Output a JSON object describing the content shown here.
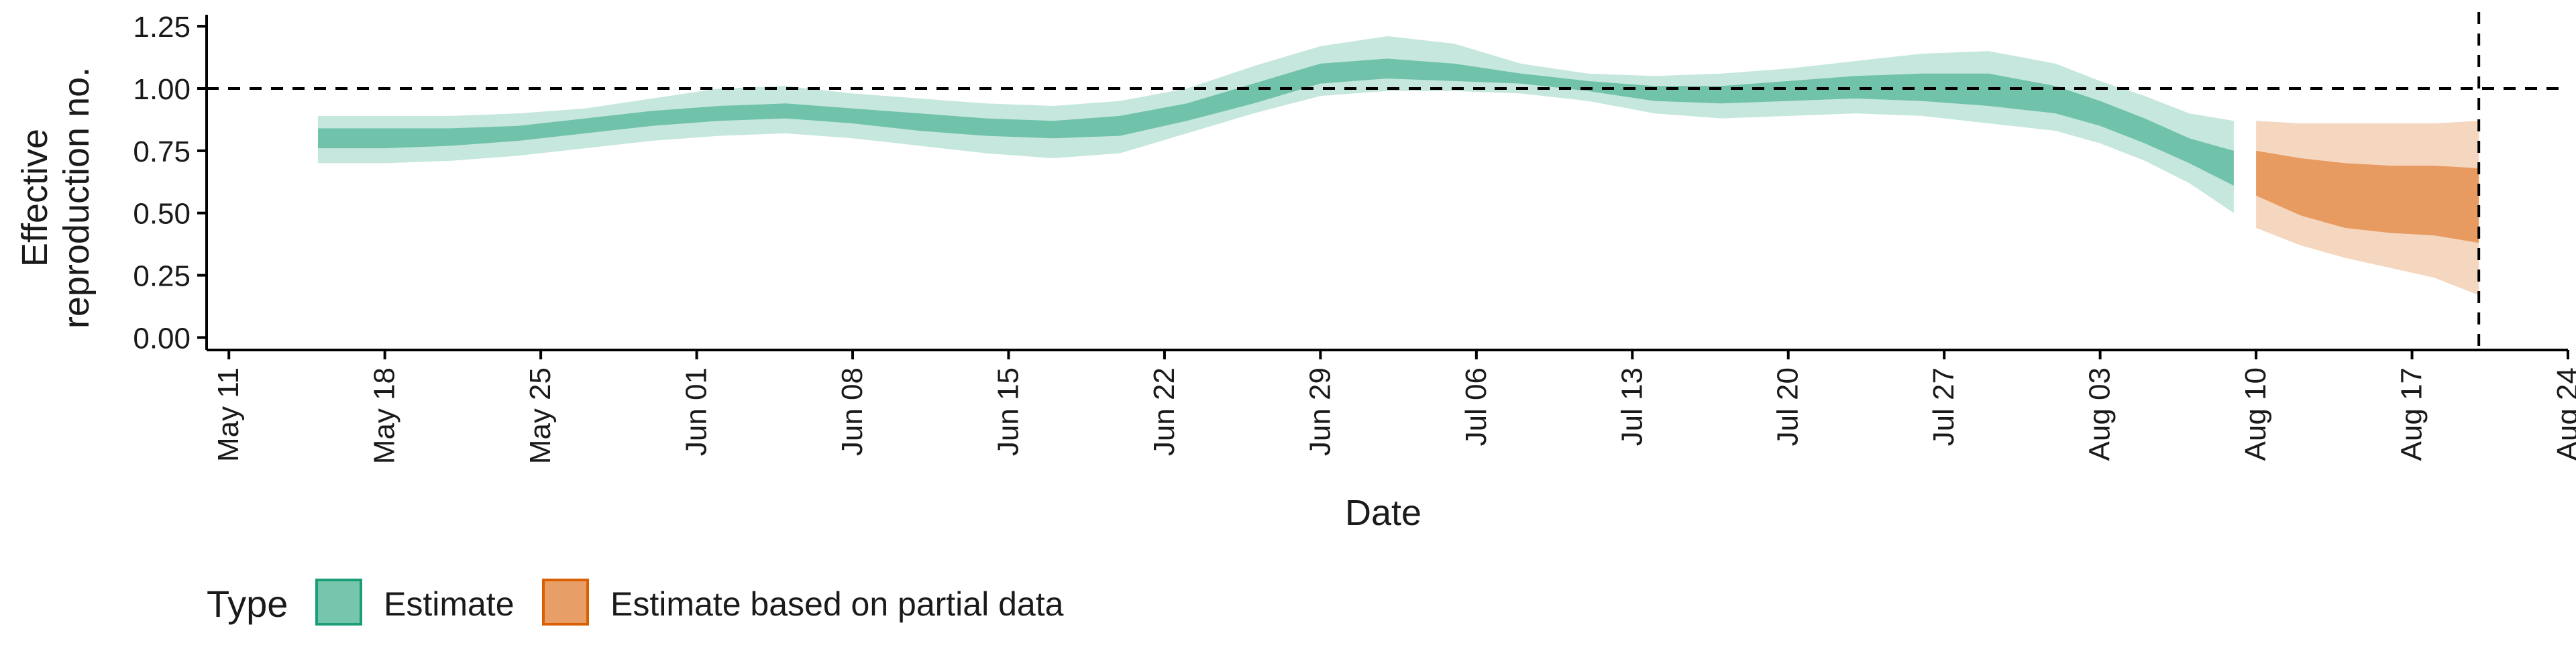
{
  "chart_data": {
    "type": "area",
    "title": "",
    "xlabel": "Date",
    "ylabel": "Effective reproduction no.",
    "ylabel_lines": [
      "Effective",
      "reproduction no."
    ],
    "xlim": [
      "2020-05-10",
      "2020-08-24"
    ],
    "ylim": [
      -0.05,
      1.28
    ],
    "x_ticks": [
      "2020-05-11",
      "2020-05-18",
      "2020-05-25",
      "2020-06-01",
      "2020-06-08",
      "2020-06-15",
      "2020-06-22",
      "2020-06-29",
      "2020-07-06",
      "2020-07-13",
      "2020-07-20",
      "2020-07-27",
      "2020-08-03",
      "2020-08-10",
      "2020-08-17",
      "2020-08-24"
    ],
    "x_tick_labels": [
      "May 11",
      "May 18",
      "May 25",
      "Jun 01",
      "Jun 08",
      "Jun 15",
      "Jun 22",
      "Jun 29",
      "Jul 06",
      "Jul 13",
      "Jul 20",
      "Jul 27",
      "Aug 03",
      "Aug 10",
      "Aug 17",
      "Aug 24"
    ],
    "y_ticks": [
      0,
      0.25,
      0.5,
      0.75,
      1,
      1.25
    ],
    "y_tick_labels": [
      "0.00",
      "0.25",
      "0.50",
      "0.75",
      "1.00",
      "1.25"
    ],
    "reference_hline": 1.0,
    "reference_vline": "2020-08-20",
    "grid": false,
    "legend": {
      "title": "Type",
      "position": "bottom-left",
      "entries": [
        {
          "label": "Estimate",
          "color": "#1b9e77"
        },
        {
          "label": "Estimate based on partial data",
          "color": "#d95f02"
        }
      ]
    },
    "series": [
      {
        "name": "Estimate",
        "color": "#1b9e77",
        "dates": [
          "2020-05-15",
          "2020-05-18",
          "2020-05-21",
          "2020-05-24",
          "2020-05-27",
          "2020-05-30",
          "2020-06-02",
          "2020-06-05",
          "2020-06-08",
          "2020-06-11",
          "2020-06-14",
          "2020-06-17",
          "2020-06-20",
          "2020-06-23",
          "2020-06-26",
          "2020-06-29",
          "2020-07-02",
          "2020-07-05",
          "2020-07-08",
          "2020-07-11",
          "2020-07-14",
          "2020-07-17",
          "2020-07-20",
          "2020-07-23",
          "2020-07-26",
          "2020-07-29",
          "2020-08-01",
          "2020-08-03",
          "2020-08-05",
          "2020-08-07",
          "2020-08-09"
        ],
        "lower_90": [
          0.7,
          0.7,
          0.71,
          0.73,
          0.76,
          0.79,
          0.81,
          0.82,
          0.8,
          0.77,
          0.74,
          0.72,
          0.74,
          0.82,
          0.9,
          0.97,
          0.99,
          0.99,
          0.98,
          0.95,
          0.9,
          0.88,
          0.89,
          0.9,
          0.89,
          0.86,
          0.83,
          0.78,
          0.71,
          0.62,
          0.5
        ],
        "upper_90": [
          0.89,
          0.89,
          0.89,
          0.9,
          0.92,
          0.96,
          1.0,
          1.01,
          0.98,
          0.96,
          0.94,
          0.93,
          0.95,
          1.0,
          1.09,
          1.17,
          1.21,
          1.18,
          1.1,
          1.06,
          1.05,
          1.06,
          1.08,
          1.11,
          1.14,
          1.15,
          1.1,
          1.03,
          0.97,
          0.9,
          0.87
        ],
        "lower_50": [
          0.76,
          0.76,
          0.77,
          0.79,
          0.82,
          0.85,
          0.87,
          0.88,
          0.86,
          0.83,
          0.81,
          0.8,
          0.81,
          0.87,
          0.94,
          1.02,
          1.04,
          1.03,
          1.02,
          0.99,
          0.95,
          0.94,
          0.95,
          0.96,
          0.95,
          0.93,
          0.9,
          0.85,
          0.78,
          0.7,
          0.61
        ],
        "upper_50": [
          0.84,
          0.84,
          0.84,
          0.85,
          0.88,
          0.91,
          0.93,
          0.94,
          0.92,
          0.9,
          0.88,
          0.87,
          0.89,
          0.94,
          1.02,
          1.1,
          1.12,
          1.1,
          1.06,
          1.03,
          1.01,
          1.01,
          1.03,
          1.05,
          1.06,
          1.06,
          1.01,
          0.95,
          0.88,
          0.8,
          0.75
        ]
      },
      {
        "name": "Estimate based on partial data",
        "color": "#d95f02",
        "dates": [
          "2020-08-10",
          "2020-08-12",
          "2020-08-14",
          "2020-08-16",
          "2020-08-18",
          "2020-08-20"
        ],
        "lower_90": [
          0.44,
          0.37,
          0.32,
          0.28,
          0.24,
          0.17
        ],
        "upper_90": [
          0.87,
          0.86,
          0.86,
          0.86,
          0.86,
          0.87
        ],
        "lower_50": [
          0.57,
          0.49,
          0.44,
          0.42,
          0.41,
          0.38
        ],
        "upper_50": [
          0.75,
          0.72,
          0.7,
          0.69,
          0.69,
          0.68
        ]
      }
    ]
  }
}
